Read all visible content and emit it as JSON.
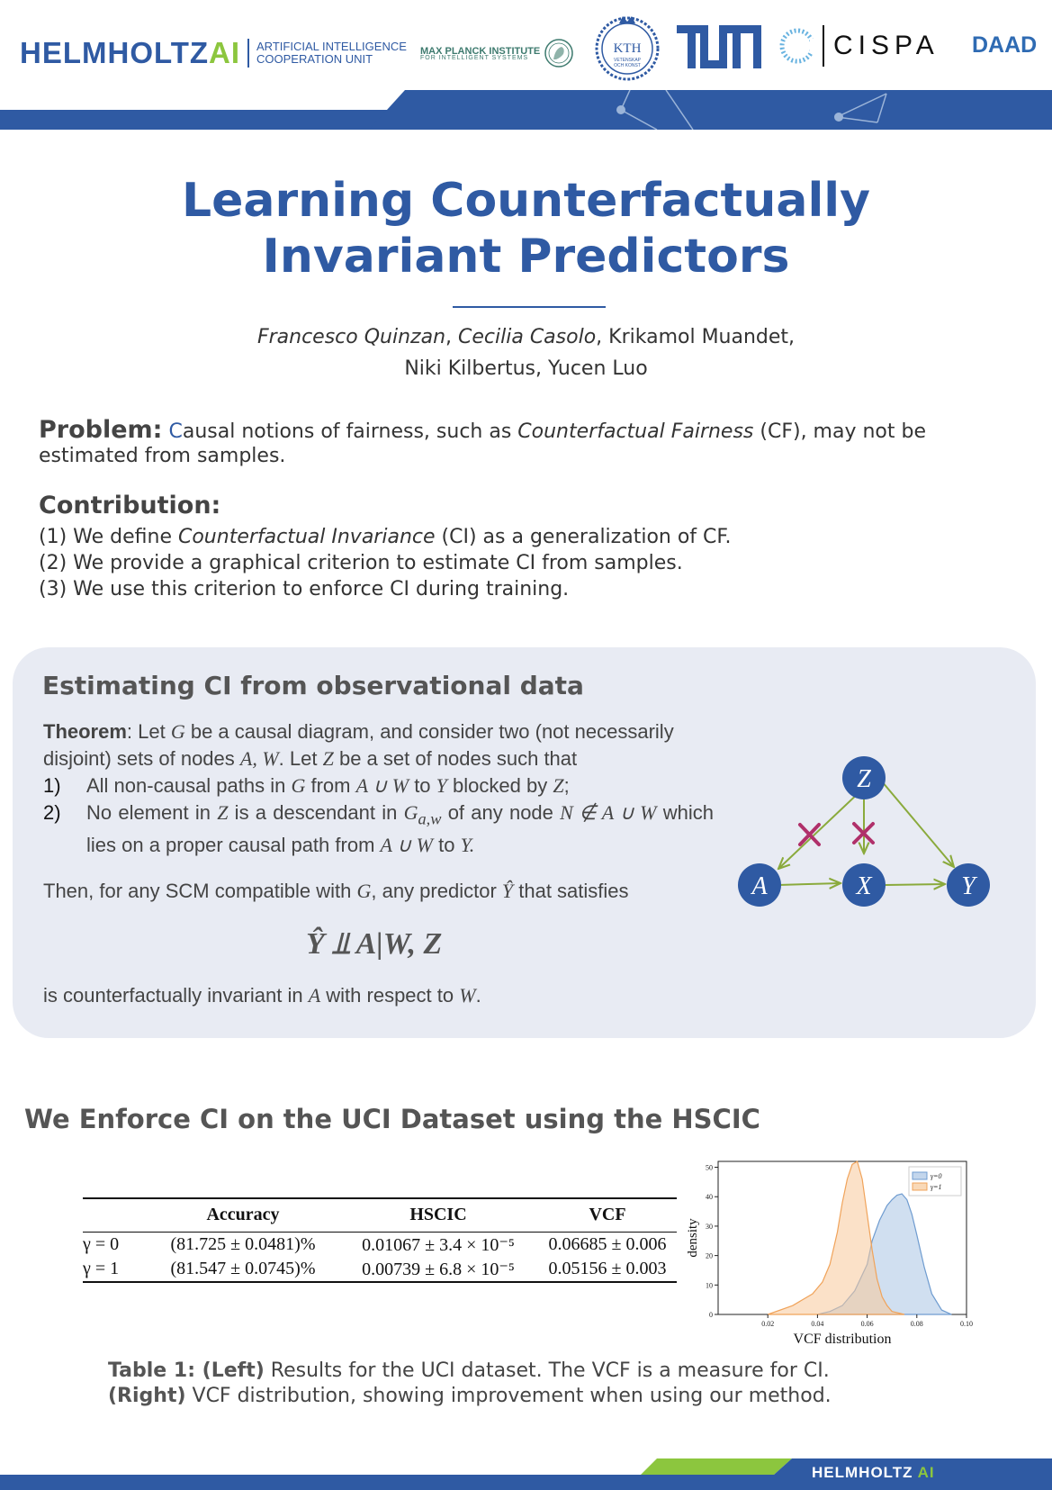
{
  "header": {
    "helmholtz_word": "HELMHOLTZ",
    "helmholtz_ai": "AI",
    "helmholtz_sub_1": "ARTIFICIAL INTELLIGENCE",
    "helmholtz_sub_2": "COOPERATION UNIT",
    "mpi_line_1": "MAX PLANCK INSTITUTE",
    "mpi_line_2": "FOR INTELLIGENT SYSTEMS",
    "kth_word": "KTH",
    "kth_sub_1": "VETENSKAP",
    "kth_sub_2": "OCH KONST",
    "cispa": "CISPA",
    "daad": "DAAD",
    "colors": {
      "primary": "#2f5aa3",
      "accent_green": "#8cc63e"
    }
  },
  "poster": {
    "title_line_1": "Learning Counterfactually",
    "title_line_2": "Invariant Predictors",
    "authors": {
      "a1": "Francesco Quinzan",
      "a2": "Cecilia Casolo",
      "a3": "Krikamol Muandet,",
      "a4": "Niki Kilbertus, Yucen Luo"
    }
  },
  "problem": {
    "label": "Problem:",
    "first_letter": "C",
    "text_1": "ausal notions of fairness, such as ",
    "emph": "Counterfactual Fairness",
    "text_2": " (CF), may not be estimated from samples."
  },
  "contribution": {
    "label": "Contribution:",
    "item1_pre": "(1) We define ",
    "item1_emph": "Counterfactual Invariance",
    "item1_post": " (CI) as a generalization of CF.",
    "item2": "(2) We provide a graphical criterion to estimate CI from samples.",
    "item3": "(3) We use this criterion to enforce CI during training."
  },
  "estimating": {
    "title": "Estimating CI from observational data",
    "theorem_label": "Theorem",
    "theorem_p1": ": Let ",
    "sym_G": "G",
    "theorem_p2": " be a causal diagram, and consider two (not necessarily disjoint) sets of nodes ",
    "sym_AW": "A, W",
    "theorem_p3": ".  Let ",
    "sym_Z": "Z",
    "theorem_p4": " be a set of nodes such that",
    "item1_num": "1)",
    "item1_a": "All non-causal paths in ",
    "item1_G": "G",
    "item1_b": " from ",
    "item1_AUW": "A ∪ W",
    "item1_c": " to ",
    "item1_Y": "Y",
    "item1_d": " blocked by ",
    "item1_Z": "Z",
    "item1_e": ";",
    "item2_num": "2)",
    "item2_a": "No element in ",
    "item2_Z": "Z",
    "item2_b": " is a descendant in ",
    "item2_G": "G",
    "item2_sub": "a,w",
    "item2_c": " of any node ",
    "item2_N": "N ∉ A ∪ W",
    "item2_d": " which lies on a proper causal path from ",
    "item2_AUW": "A ∪ W",
    "item2_e": " to ",
    "item2_Y": "Y.",
    "then_a": "Then, for any SCM compatible with ",
    "then_G": "G",
    "then_b": ", any predictor ",
    "then_Yhat": "Ŷ",
    "then_c": " that satisfies",
    "formula": "Ŷ ⫫ A|W, Z",
    "result_a": "is counterfactually invariant in ",
    "result_A": "A",
    "result_b": " with respect to ",
    "result_W": "W",
    "result_c": ".",
    "graph": {
      "nodes": [
        "Z",
        "A",
        "X",
        "Y"
      ],
      "node_color": "#2f5aa3",
      "edge_color": "#8aaa3c",
      "blocked_color": "#b0306a"
    }
  },
  "uci": {
    "title": "We Enforce CI on the UCI Dataset using the HSCIC",
    "table": {
      "headers": [
        "",
        "Accuracy",
        "HSCIC",
        "VCF"
      ],
      "rows": [
        [
          "γ = 0",
          "(81.725 ± 0.0481)%",
          "0.01067 ± 3.4 × 10⁻⁵",
          "0.06685 ± 0.006"
        ],
        [
          "γ = 1",
          "(81.547 ± 0.0745)%",
          "0.00739 ± 6.8 × 10⁻⁵",
          "0.05156 ± 0.003"
        ]
      ]
    },
    "caption": {
      "left_label": "Table 1: (Left)",
      "left_text": " Results for the UCI dataset. The VCF is a measure for CI.",
      "right_label": "(Right)",
      "right_text": " VCF distribution, showing improvement when using our method."
    }
  },
  "chart_data": {
    "type": "area",
    "xlabel": "VCF distribution",
    "ylabel": "density",
    "xlim": [
      0.0,
      0.1
    ],
    "ylim": [
      0,
      52
    ],
    "xticks": [
      "0.02",
      "0.04",
      "0.06",
      "0.08",
      "0.10"
    ],
    "yticks": [
      "0",
      "10",
      "20",
      "30",
      "40",
      "50"
    ],
    "legend_position": "top-right",
    "series": [
      {
        "name": "γ=0",
        "color": "#a9c4e4",
        "x": [
          0.04,
          0.045,
          0.05,
          0.055,
          0.06,
          0.062,
          0.065,
          0.068,
          0.07,
          0.072,
          0.074,
          0.076,
          0.078,
          0.08,
          0.083,
          0.086,
          0.09,
          0.094
        ],
        "y": [
          0,
          1,
          3,
          8,
          17,
          25,
          32,
          37,
          39,
          40.5,
          41,
          39,
          34,
          27,
          16,
          7,
          1.5,
          0
        ]
      },
      {
        "name": "γ=1",
        "color": "#f7c99a",
        "x": [
          0.02,
          0.03,
          0.038,
          0.042,
          0.045,
          0.048,
          0.05,
          0.052,
          0.054,
          0.056,
          0.058,
          0.06,
          0.062,
          0.064,
          0.066,
          0.068,
          0.07,
          0.075
        ],
        "y": [
          0,
          3,
          7,
          11,
          17,
          28,
          38,
          46,
          51,
          52,
          46,
          34,
          22,
          12,
          6,
          3,
          1,
          0
        ]
      }
    ]
  },
  "footer": {
    "word": "HELMHOLTZ",
    "ai": "AI"
  }
}
